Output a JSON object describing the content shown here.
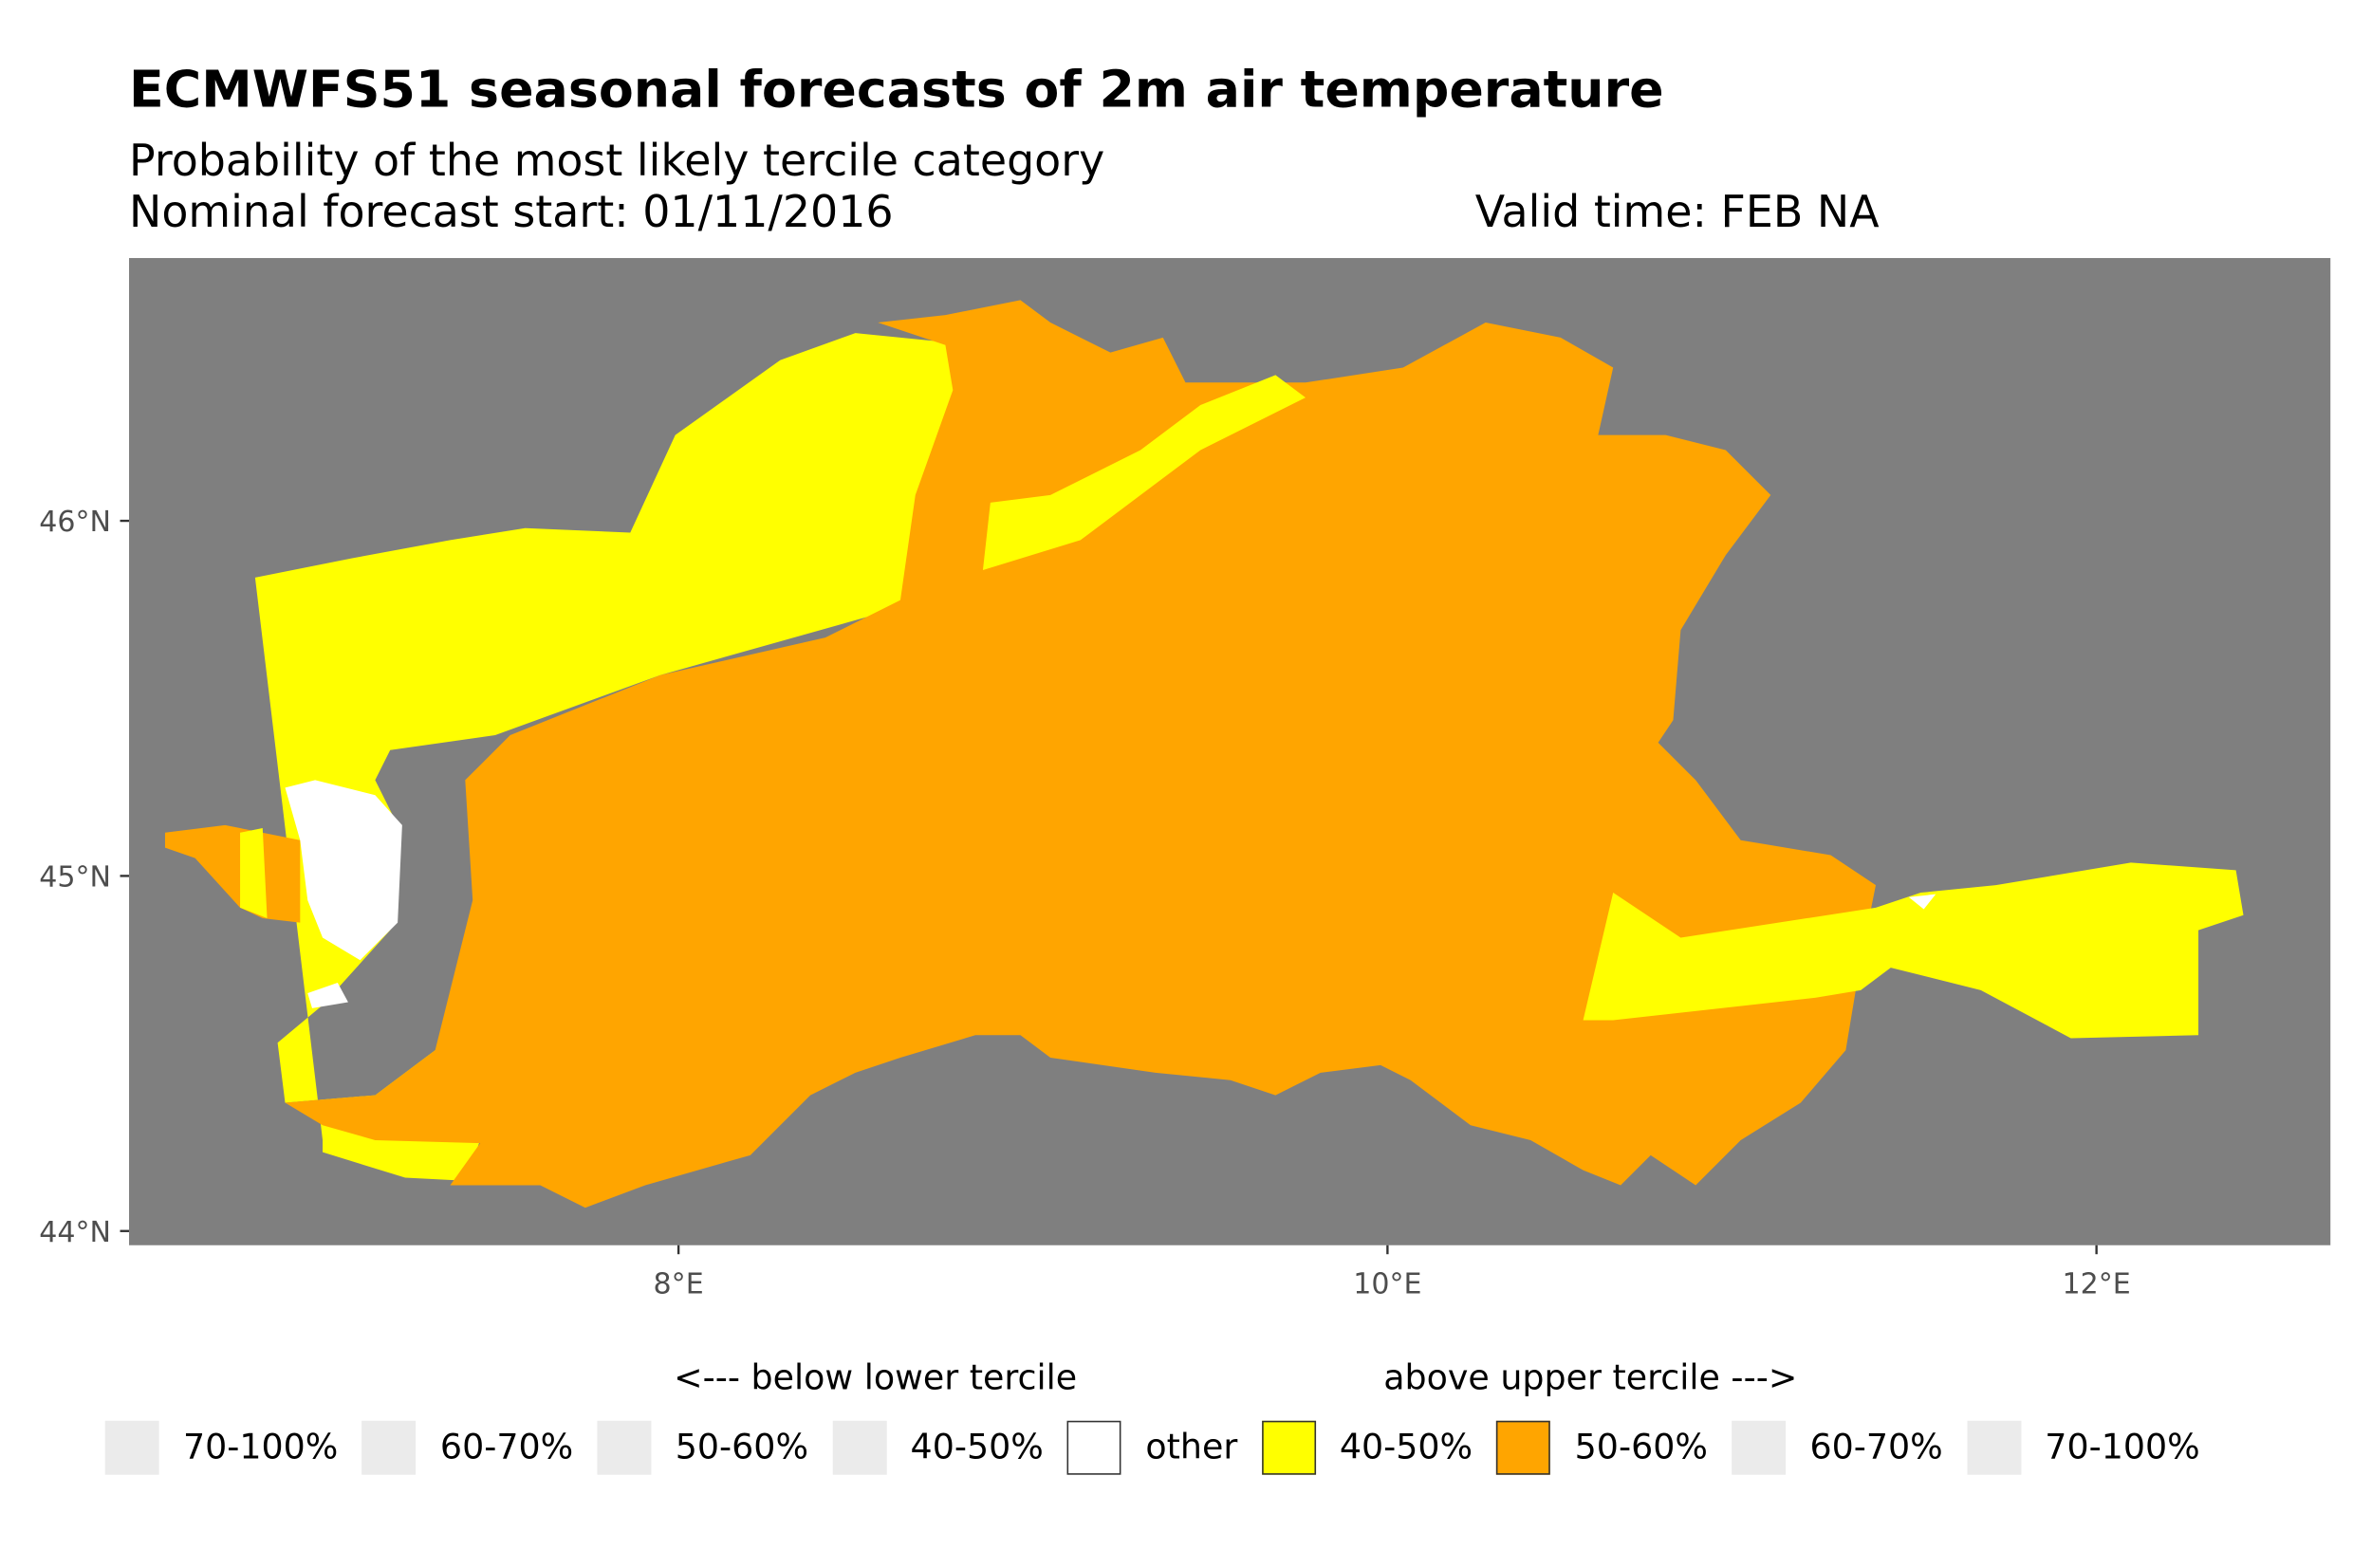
{
  "header": {
    "title": "ECMWFS51 seasonal forecasts of 2m air temperature",
    "subtitle": "Probability of the most likely tercile category",
    "forecast_start": "Nominal forecast start: 01/11/2016",
    "valid_time": "Valid time: FEB NA"
  },
  "chart_data": {
    "type": "heatmap",
    "title": "ECMWFS51 seasonal forecasts of 2m air temperature",
    "xlabel": "",
    "ylabel": "",
    "xlim": [
      6.45,
      12.66
    ],
    "ylim": [
      43.96,
      46.74
    ],
    "x_ticks": [
      {
        "value": 8,
        "label": "8°E"
      },
      {
        "value": 10,
        "label": "10°E"
      },
      {
        "value": 12,
        "label": "12°E"
      }
    ],
    "y_ticks": [
      {
        "value": 44,
        "label": "44°N"
      },
      {
        "value": 45,
        "label": "45°N"
      },
      {
        "value": 46,
        "label": "46°N"
      }
    ],
    "background_color": "#7f7f7f",
    "categories_present": [
      "other",
      "above 40-50%",
      "above 50-60%"
    ],
    "legend": {
      "placement": "bottom",
      "below_title": "<--- below lower tercile",
      "above_title": "above upper tercile --->",
      "items": [
        {
          "label": "70-100%",
          "color": "#ebebeb",
          "group": "below"
        },
        {
          "label": "60-70%",
          "color": "#ebebeb",
          "group": "below"
        },
        {
          "label": "50-60%",
          "color": "#ebebeb",
          "group": "below"
        },
        {
          "label": "40-50%",
          "color": "#ebebeb",
          "group": "below"
        },
        {
          "label": "other",
          "color": "#ffffff",
          "group": "other"
        },
        {
          "label": "40-50%",
          "color": "#ffff00",
          "group": "above"
        },
        {
          "label": "50-60%",
          "color": "#ffa500",
          "group": "above"
        },
        {
          "label": "60-70%",
          "color": "#ebebeb",
          "group": "above"
        },
        {
          "label": "70-100%",
          "color": "#ebebeb",
          "group": "above"
        }
      ]
    }
  }
}
